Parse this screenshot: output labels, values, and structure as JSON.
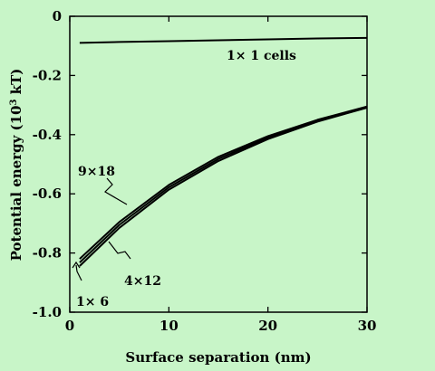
{
  "background_color": "#c8f5c8",
  "chart_data": {
    "type": "line",
    "title": "",
    "xlabel": "Surface separation (nm)",
    "ylabel_main": "Potential energy (10",
    "ylabel_sup": "3",
    "ylabel_end": " kT)",
    "xlim": [
      0,
      30
    ],
    "ylim": [
      -1.0,
      0
    ],
    "xticks": [
      0,
      10,
      20,
      30
    ],
    "yticks": [
      0,
      -0.2,
      -0.4,
      -0.6,
      -0.8,
      -1.0
    ],
    "xtick_labels": [
      "0",
      "10",
      "20",
      "30"
    ],
    "ytick_labels": [
      "0",
      "-0.2",
      "-0.4",
      "-0.6",
      "-0.8",
      "-1.0"
    ],
    "grid": false,
    "series": [
      {
        "name": "1× 1 cells",
        "x": [
          1,
          5,
          10,
          15,
          20,
          25,
          30
        ],
        "y": [
          -0.09,
          -0.087,
          -0.084,
          -0.081,
          -0.078,
          -0.075,
          -0.073
        ]
      },
      {
        "name": "9×18",
        "x": [
          1,
          5,
          10,
          15,
          20,
          25,
          30
        ],
        "y": [
          -0.82,
          -0.695,
          -0.57,
          -0.475,
          -0.405,
          -0.35,
          -0.305
        ]
      },
      {
        "name": "1× 6",
        "x": [
          1,
          5,
          10,
          15,
          20,
          25,
          30
        ],
        "y": [
          -0.832,
          -0.705,
          -0.578,
          -0.482,
          -0.41,
          -0.353,
          -0.307
        ]
      },
      {
        "name": "4×12",
        "x": [
          1,
          5,
          10,
          15,
          20,
          25,
          30
        ],
        "y": [
          -0.844,
          -0.715,
          -0.586,
          -0.489,
          -0.415,
          -0.356,
          -0.309
        ]
      }
    ],
    "annotations": [
      {
        "text": "1× 1 cells"
      },
      {
        "text": "9×18"
      },
      {
        "text": "4×12"
      },
      {
        "text": "1× 6"
      }
    ]
  }
}
